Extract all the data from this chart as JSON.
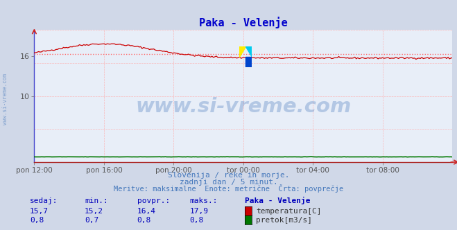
{
  "title": "Paka - Velenje",
  "title_color": "#0000cc",
  "bg_color": "#d0d8e8",
  "plot_bg_color": "#e8eef8",
  "grid_color_h": "#ffaaaa",
  "grid_color_v": "#ffaaaa",
  "temp_color": "#cc0000",
  "flow_color": "#007700",
  "avg_line_color": "#ff6666",
  "avg_temp": 16.4,
  "ylim": [
    0,
    20
  ],
  "yticks": [
    10,
    16
  ],
  "ytick_labels": [
    "10",
    "16"
  ],
  "x_tick_labels": [
    "pon 12:00",
    "pon 16:00",
    "pon 20:00",
    "tor 00:00",
    "tor 04:00",
    "tor 08:00"
  ],
  "x_tick_positions": [
    0,
    4,
    8,
    12,
    16,
    20
  ],
  "watermark_text": "www.si-vreme.com",
  "watermark_color": "#4477bb",
  "footer_line1": "Slovenija / reke in morje.",
  "footer_line2": "zadnji dan / 5 minut.",
  "footer_line3": "Meritve: maksimalne  Enote: metrične  Črta: povprečje",
  "footer_color": "#4477bb",
  "table_header": [
    "sedaj:",
    "min.:",
    "povpr.:",
    "maks.:",
    "Paka - Velenje"
  ],
  "table_row1": [
    "15,7",
    "15,2",
    "16,4",
    "17,9",
    "temperatura[C]"
  ],
  "table_row2": [
    "0,8",
    "0,7",
    "0,8",
    "0,8",
    "pretok[m3/s]"
  ],
  "table_color_header": "#0000bb",
  "table_color_data": "#0000bb",
  "sidewater_color": "#4477bb",
  "logo_colors": [
    "#ffee00",
    "#00ccee",
    "#0044cc"
  ]
}
